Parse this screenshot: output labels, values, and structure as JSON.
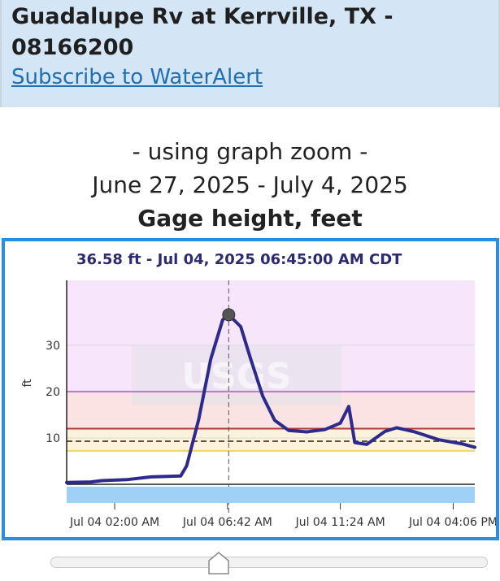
{
  "header": {
    "title": "Guadalupe Rv at Kerrville, TX - 08166200",
    "subscribe_link": "Subscribe to WaterAlert"
  },
  "caption": {
    "zoom_note": "- using graph zoom -",
    "date_range": "June 27, 2025 - July 4, 2025",
    "parameter": "Gage height, feet"
  },
  "colors": {
    "accent_border": "#2a8ee0",
    "series_line": "#2e2a8c",
    "band_upper": "#f7e6fb",
    "band_mid": "#fbe3e3",
    "band_low": "#fdf3dd",
    "threshold_purple": "#b978d3",
    "threshold_red": "#b23a3a",
    "threshold_yellow": "#f0d66a",
    "median_dashed": "#6b4e2e"
  },
  "chart_data": {
    "type": "line",
    "readout": "36.58 ft - Jul 04, 2025 06:45:00 AM CDT",
    "ylabel": "ft",
    "y_ticks": [
      10,
      20,
      30
    ],
    "ylim": [
      0,
      44
    ],
    "x_start": "Jul 04 00:00",
    "x_end": "Jul 04 17:00",
    "x_ticks": [
      {
        "t": "Jul 04 02:00",
        "label": "Jul 04 02:00 AM"
      },
      {
        "t": "Jul 04 06:42",
        "label": "Jul 04 06:42 AM"
      },
      {
        "t": "Jul 04 11:24",
        "label": "Jul 04 11:24 AM"
      },
      {
        "t": "Jul 04 16:06",
        "label": "Jul 04 04:06 PM"
      }
    ],
    "grid": true,
    "series": [
      {
        "points": [
          [
            "Jul 04 00:00",
            0.4
          ],
          [
            "Jul 04 01:00",
            0.5
          ],
          [
            "Jul 04 01:30",
            0.8
          ],
          [
            "Jul 04 02:30",
            1.0
          ],
          [
            "Jul 04 03:30",
            1.6
          ],
          [
            "Jul 04 04:45",
            1.8
          ],
          [
            "Jul 04 05:00",
            4.0
          ],
          [
            "Jul 04 05:30",
            14.0
          ],
          [
            "Jul 04 06:00",
            27.0
          ],
          [
            "Jul 04 06:30",
            35.5
          ],
          [
            "Jul 04 06:45",
            36.58
          ],
          [
            "Jul 04 07:15",
            34.0
          ],
          [
            "Jul 04 07:40",
            27.0
          ],
          [
            "Jul 04 08:10",
            19.0
          ],
          [
            "Jul 04 08:40",
            13.8
          ],
          [
            "Jul 04 09:15",
            11.6
          ],
          [
            "Jul 04 10:00",
            11.3
          ],
          [
            "Jul 04 10:45",
            11.8
          ],
          [
            "Jul 04 11:24",
            13.2
          ],
          [
            "Jul 04 11:45",
            16.8
          ],
          [
            "Jul 04 12:00",
            9.0
          ],
          [
            "Jul 04 12:30",
            8.6
          ],
          [
            "Jul 04 13:15",
            11.4
          ],
          [
            "Jul 04 13:45",
            12.2
          ],
          [
            "Jul 04 14:30",
            11.3
          ],
          [
            "Jul 04 15:30",
            9.6
          ],
          [
            "Jul 04 16:30",
            8.7
          ],
          [
            "Jul 04 17:00",
            8.0
          ]
        ]
      }
    ],
    "highlight_point": [
      "Jul 04 06:45",
      36.58
    ],
    "thresholds": [
      20,
      12,
      9.3,
      7.2
    ]
  }
}
